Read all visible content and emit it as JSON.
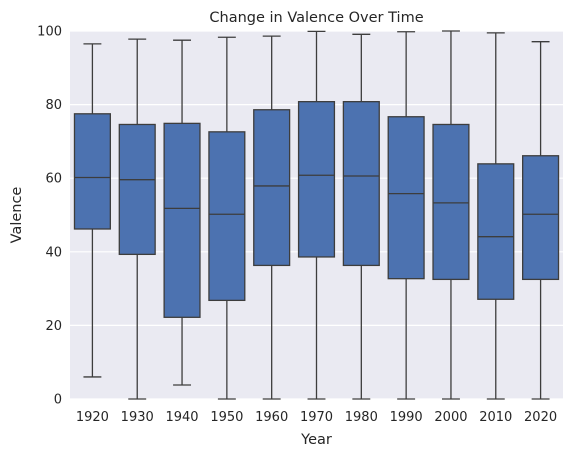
{
  "chart_data": {
    "type": "box",
    "title": "Change in Valence Over Time",
    "xlabel": "Year",
    "ylabel": "Valence",
    "ylim": [
      0,
      100
    ],
    "yticks": [
      "0",
      "20",
      "40",
      "60",
      "80",
      "100"
    ],
    "grid": true,
    "box_color": "#4C72B0",
    "edge_color": "#3d3d3d",
    "background_color": "#EAEAF2",
    "categories": [
      "1920",
      "1930",
      "1940",
      "1950",
      "1960",
      "1970",
      "1980",
      "1990",
      "2000",
      "2010",
      "2020"
    ],
    "boxes": [
      {
        "category": "1920",
        "whislo": 6,
        "q1": 46.2,
        "median": 60.2,
        "q3": 77.5,
        "whishi": 96.5
      },
      {
        "category": "1930",
        "whislo": 0,
        "q1": 39.3,
        "median": 59.6,
        "q3": 74.6,
        "whishi": 97.8
      },
      {
        "category": "1940",
        "whislo": 3.8,
        "q1": 22.2,
        "median": 51.8,
        "q3": 74.9,
        "whishi": 97.5
      },
      {
        "category": "1950",
        "whislo": 0,
        "q1": 26.8,
        "median": 50.2,
        "q3": 72.6,
        "whishi": 98.3
      },
      {
        "category": "1960",
        "whislo": 0,
        "q1": 36.3,
        "median": 57.9,
        "q3": 78.6,
        "whishi": 98.6
      },
      {
        "category": "1970",
        "whislo": 0,
        "q1": 38.6,
        "median": 60.8,
        "q3": 80.8,
        "whishi": 99.9
      },
      {
        "category": "1980",
        "whislo": 0,
        "q1": 36.3,
        "median": 60.6,
        "q3": 80.8,
        "whishi": 99.1
      },
      {
        "category": "1990",
        "whislo": 0,
        "q1": 32.7,
        "median": 55.8,
        "q3": 76.7,
        "whishi": 99.8
      },
      {
        "category": "2000",
        "whislo": 0,
        "q1": 32.5,
        "median": 53.3,
        "q3": 74.6,
        "whishi": 100
      },
      {
        "category": "2010",
        "whislo": 0,
        "q1": 27.1,
        "median": 44.1,
        "q3": 63.9,
        "whishi": 99.5
      },
      {
        "category": "2020",
        "whislo": 0,
        "q1": 32.5,
        "median": 50.2,
        "q3": 66.1,
        "whishi": 97.1
      }
    ]
  }
}
